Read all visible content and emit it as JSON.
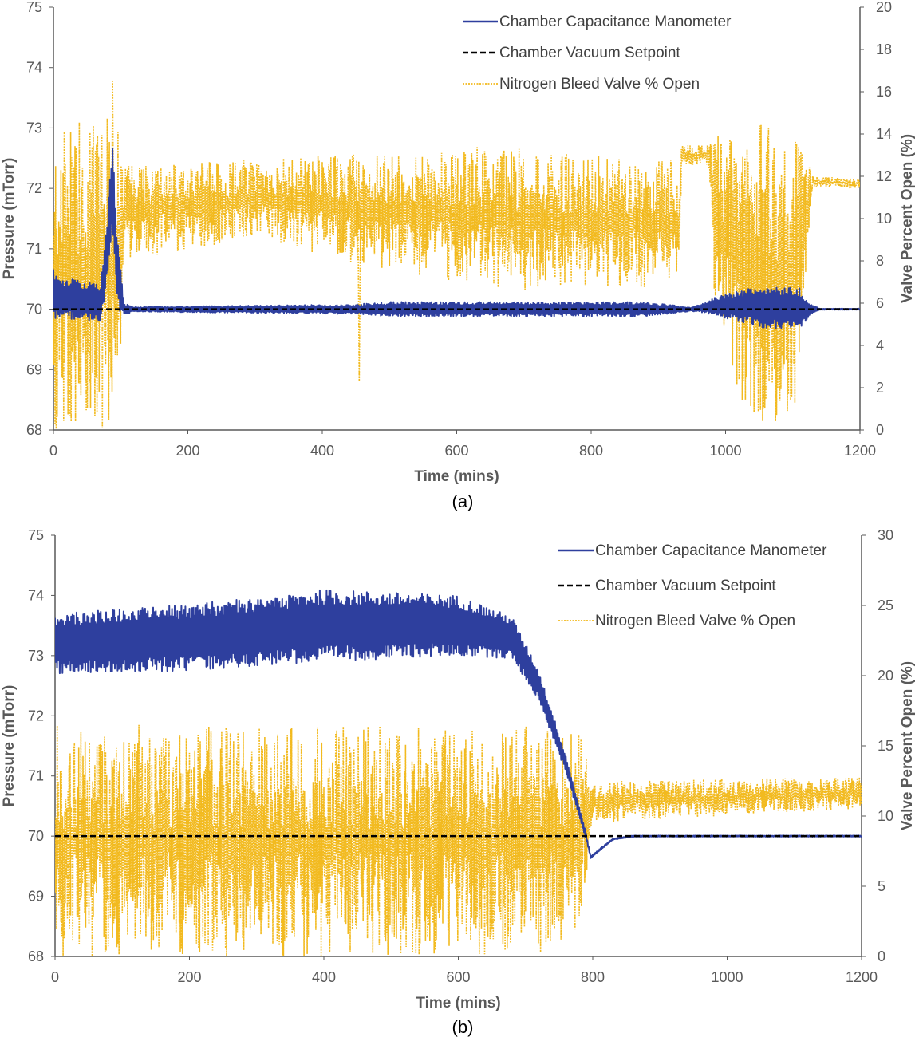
{
  "chart_data": [
    {
      "type": "line",
      "panel_label": "(a)",
      "xlabel": "Time (mins)",
      "ylabel": "Pressure (mTorr)",
      "y2label": "Valve Percent Open (%)",
      "xlim": [
        0,
        1200
      ],
      "ylim": [
        68,
        75
      ],
      "y2lim": [
        0,
        20
      ],
      "xticks": [
        "0",
        "200",
        "400",
        "600",
        "800",
        "1000",
        "1200"
      ],
      "yticks": [
        "68",
        "69",
        "70",
        "71",
        "72",
        "73",
        "74",
        "75"
      ],
      "y2ticks": [
        "0",
        "2",
        "4",
        "6",
        "8",
        "10",
        "12",
        "14",
        "16",
        "18",
        "20"
      ],
      "grid": false,
      "legend_position": "top-right",
      "series": [
        {
          "name": "Chamber Capacitance Manometer",
          "axis": "left",
          "style": "solid",
          "color": "#2E3F9E",
          "profile": [
            {
              "t": 0,
              "center": 70.3,
              "amp": 0.6
            },
            {
              "t": 3,
              "center": 70.2,
              "amp": 0.35
            },
            {
              "t": 70,
              "center": 70.1,
              "amp": 0.3
            },
            {
              "t": 80,
              "center": 71.0,
              "amp": 0.6
            },
            {
              "t": 88,
              "center": 72.0,
              "amp": 0.7
            },
            {
              "t": 95,
              "center": 70.6,
              "amp": 0.6
            },
            {
              "t": 105,
              "center": 70.0,
              "amp": 0.1
            },
            {
              "t": 120,
              "center": 70.0,
              "amp": 0.04
            },
            {
              "t": 450,
              "center": 70.0,
              "amp": 0.08
            },
            {
              "t": 500,
              "center": 70.0,
              "amp": 0.12
            },
            {
              "t": 880,
              "center": 70.0,
              "amp": 0.12
            },
            {
              "t": 950,
              "center": 70.0,
              "amp": 0.03
            },
            {
              "t": 985,
              "center": 70.05,
              "amp": 0.15
            },
            {
              "t": 1050,
              "center": 70.05,
              "amp": 0.35
            },
            {
              "t": 1110,
              "center": 70.0,
              "amp": 0.35
            },
            {
              "t": 1125,
              "center": 70.0,
              "amp": 0.1
            },
            {
              "t": 1140,
              "center": 70.0,
              "amp": 0.01
            },
            {
              "t": 1200,
              "center": 70.0,
              "amp": 0.01
            }
          ]
        },
        {
          "name": "Chamber Vacuum Setpoint",
          "axis": "left",
          "style": "dashed",
          "color": "#000000",
          "x": [
            0,
            1200
          ],
          "y": [
            70,
            70
          ]
        },
        {
          "name": "Nitrogen Bleed Valve % Open",
          "axis": "right",
          "style": "dotted",
          "color": "#F2BA1F",
          "profile": [
            {
              "t": 0,
              "lo": 0,
              "hi": 14.5
            },
            {
              "t": 95,
              "lo": 0,
              "hi": 15
            },
            {
              "t": 105,
              "lo": 8,
              "hi": 12.5
            },
            {
              "t": 300,
              "lo": 9,
              "hi": 12.8
            },
            {
              "t": 500,
              "lo": 7.5,
              "hi": 13.2
            },
            {
              "t": 700,
              "lo": 6.5,
              "hi": 13.5
            },
            {
              "t": 850,
              "lo": 6.8,
              "hi": 12.8
            },
            {
              "t": 930,
              "lo": 6.5,
              "hi": 13
            },
            {
              "t": 935,
              "lo": 12.5,
              "hi": 13.5
            },
            {
              "t": 975,
              "lo": 12.5,
              "hi": 13.5
            },
            {
              "t": 985,
              "lo": 5,
              "hi": 14
            },
            {
              "t": 1040,
              "lo": 0,
              "hi": 14.5
            },
            {
              "t": 1100,
              "lo": 0,
              "hi": 14.5
            },
            {
              "t": 1130,
              "lo": 11.5,
              "hi": 12
            },
            {
              "t": 1200,
              "lo": 11.4,
              "hi": 11.9
            }
          ],
          "spikes": [
            {
              "x": 88,
              "y": 16.5
            },
            {
              "x": 455,
              "y": 2.3
            }
          ]
        }
      ]
    },
    {
      "type": "line",
      "panel_label": "(b)",
      "xlabel": "Time (mins)",
      "ylabel": "Pressure (mTorr)",
      "y2label": "Valve Percent Open (%)",
      "xlim": [
        0,
        1200
      ],
      "ylim": [
        68,
        75
      ],
      "y2lim": [
        0,
        30
      ],
      "xticks": [
        "0",
        "200",
        "400",
        "600",
        "800",
        "1000",
        "1200"
      ],
      "yticks": [
        "68",
        "69",
        "70",
        "71",
        "72",
        "73",
        "74",
        "75"
      ],
      "y2ticks": [
        "0",
        "5",
        "10",
        "15",
        "20",
        "25",
        "30"
      ],
      "grid": false,
      "legend_position": "top-right",
      "series": [
        {
          "name": "Chamber Capacitance Manometer",
          "axis": "left",
          "style": "solid",
          "color": "#2E3F9E",
          "profile": [
            {
              "t": 0,
              "center": 73.2,
              "amp": 0.5
            },
            {
              "t": 200,
              "center": 73.3,
              "amp": 0.55
            },
            {
              "t": 400,
              "center": 73.5,
              "amp": 0.6
            },
            {
              "t": 600,
              "center": 73.5,
              "amp": 0.5
            },
            {
              "t": 680,
              "center": 73.3,
              "amp": 0.35
            },
            {
              "t": 720,
              "center": 72.5,
              "amp": 0.25
            },
            {
              "t": 760,
              "center": 71.2,
              "amp": 0.15
            },
            {
              "t": 790,
              "center": 70.0,
              "amp": 0.05
            },
            {
              "t": 797,
              "center": 69.65,
              "amp": 0.02
            },
            {
              "t": 830,
              "center": 69.95,
              "amp": 0.01
            },
            {
              "t": 860,
              "center": 70.0,
              "amp": 0.01
            },
            {
              "t": 1200,
              "center": 70.0,
              "amp": 0.01
            }
          ]
        },
        {
          "name": "Chamber Vacuum Setpoint",
          "axis": "left",
          "style": "dashed",
          "color": "#000000",
          "x": [
            0,
            1200
          ],
          "y": [
            70,
            70
          ]
        },
        {
          "name": "Nitrogen Bleed Valve % Open",
          "axis": "right",
          "style": "dotted",
          "color": "#F2BA1F",
          "profile": [
            {
              "t": 0,
              "lo": 0,
              "hi": 16.5
            },
            {
              "t": 770,
              "lo": 0,
              "hi": 16.5
            },
            {
              "t": 790,
              "lo": 5,
              "hi": 15
            },
            {
              "t": 800,
              "lo": 9.5,
              "hi": 12.5
            },
            {
              "t": 1200,
              "lo": 10.5,
              "hi": 12.8
            }
          ],
          "spikes": []
        }
      ]
    }
  ]
}
